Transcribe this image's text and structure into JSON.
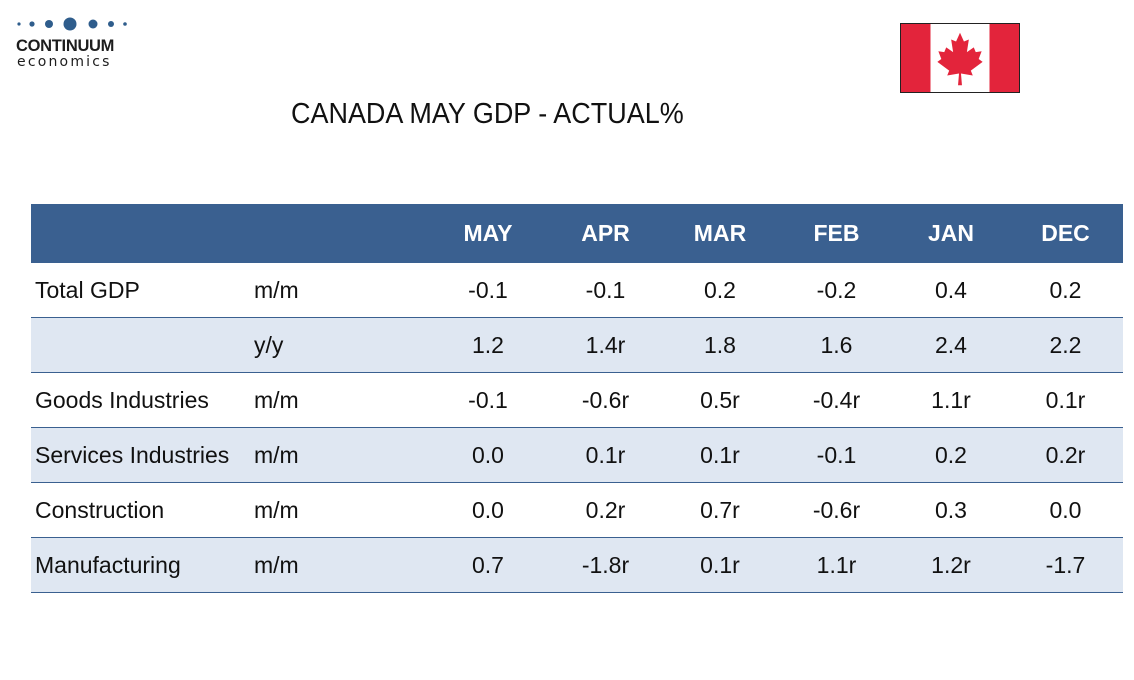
{
  "brand": {
    "name": "CONTINUUM",
    "sub": "economics"
  },
  "flag": {
    "icon": "canada-flag-icon",
    "colors": {
      "red": "#e3243b",
      "white": "#ffffff"
    }
  },
  "title": "CANADA MAY GDP - ACTUAL%",
  "table": {
    "columns": [
      "MAY",
      "APR",
      "MAR",
      "FEB",
      "JAN",
      "DEC"
    ],
    "rows": [
      {
        "label": "Total GDP",
        "unit": "m/m",
        "values": [
          "-0.1",
          "-0.1",
          "0.2",
          "-0.2",
          "0.4",
          "0.2"
        ]
      },
      {
        "label": "",
        "unit": "y/y",
        "values": [
          "1.2",
          "1.4r",
          "1.8",
          "1.6",
          "2.4",
          "2.2"
        ]
      },
      {
        "label": "Goods Industries",
        "unit": "m/m",
        "values": [
          "-0.1",
          "-0.6r",
          "0.5r",
          "-0.4r",
          "1.1r",
          "0.1r"
        ]
      },
      {
        "label": "Services Industries",
        "unit": "m/m",
        "values": [
          "0.0",
          "0.1r",
          "0.1r",
          "-0.1",
          "0.2",
          "0.2r"
        ]
      },
      {
        "label": "Construction",
        "unit": "m/m",
        "values": [
          "0.0",
          "0.2r",
          "0.7r",
          "-0.6r",
          "0.3",
          "0.0"
        ]
      },
      {
        "label": "Manufacturing",
        "unit": "m/m",
        "values": [
          "0.7",
          "-1.8r",
          "0.1r",
          "1.1r",
          "1.2r",
          "-1.7"
        ]
      }
    ]
  },
  "colors": {
    "header_bg": "#3a6090",
    "alt_row_bg": "#dfe7f2",
    "logo_dots": "#2f5d8c"
  }
}
